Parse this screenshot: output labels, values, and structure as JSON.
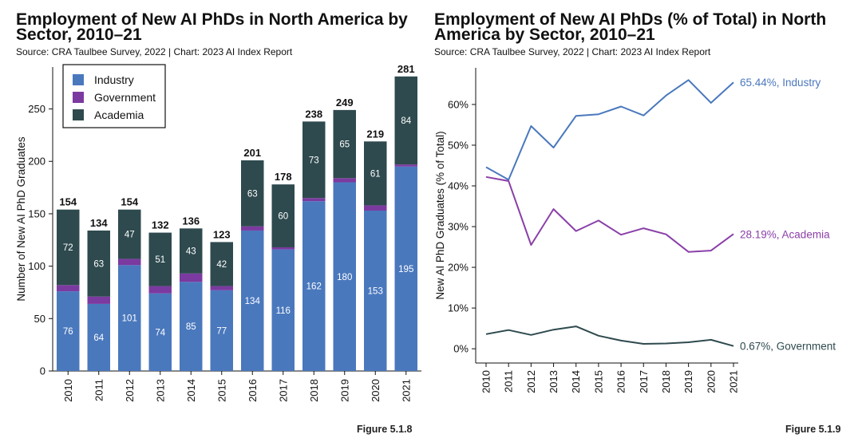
{
  "left": {
    "title_line1": "Employment of New AI PhDs in North America by",
    "title_line2": "Sector, 2010–21",
    "source": "Source: CRA Taulbee Survey, 2022 | Chart: 2023 AI Index Report",
    "figure": "Figure 5.1.8"
  },
  "right": {
    "title_line1": "Employment of New AI PhDs (% of Total) in North",
    "title_line2": "America by Sector, 2010–21",
    "source": "Source: CRA Taulbee Survey, 2022 | Chart: 2023 AI Index Report",
    "figure": "Figure 5.1.9"
  },
  "colors": {
    "industry": "#4a78bd",
    "government": "#7b3aa0",
    "academia": "#2e4a4e",
    "industry_line": "#4a78bd",
    "academia_line": "#8a3fa8",
    "government_line": "#2e4a4e"
  },
  "chart_data": [
    {
      "type": "bar",
      "stacked": true,
      "title": "Employment of New AI PhDs in North America by Sector, 2010–21",
      "ylabel": "Number of New AI PhD Graduates",
      "xlabel": "",
      "ylim": [
        0,
        290
      ],
      "yticks": [
        0,
        50,
        100,
        150,
        200,
        250
      ],
      "categories": [
        "2010",
        "2011",
        "2012",
        "2013",
        "2014",
        "2015",
        "2016",
        "2017",
        "2018",
        "2019",
        "2020",
        "2021"
      ],
      "series": [
        {
          "name": "Industry",
          "values": [
            76,
            64,
            101,
            74,
            85,
            77,
            134,
            116,
            162,
            180,
            153,
            195
          ]
        },
        {
          "name": "Government",
          "values": [
            6,
            7,
            6,
            7,
            8,
            4,
            4,
            2,
            3,
            4,
            5,
            2
          ]
        },
        {
          "name": "Academia",
          "values": [
            72,
            63,
            47,
            51,
            43,
            42,
            63,
            60,
            73,
            65,
            61,
            84
          ]
        }
      ],
      "totals": [
        154,
        134,
        154,
        132,
        136,
        123,
        201,
        178,
        238,
        249,
        219,
        281
      ],
      "legend": "top-left",
      "grid": false
    },
    {
      "type": "line",
      "title": "Employment of New AI PhDs (% of Total) in North America by Sector, 2010–21",
      "ylabel": "New AI PhD Graduates (% of Total)",
      "xlabel": "",
      "ylim": [
        -3.5,
        69
      ],
      "yticks": [
        0,
        10,
        20,
        30,
        40,
        50,
        60
      ],
      "ytick_labels": [
        "0%",
        "10%",
        "20%",
        "30%",
        "40%",
        "50%",
        "60%"
      ],
      "x": [
        "2010",
        "2011",
        "2012",
        "2013",
        "2014",
        "2015",
        "2016",
        "2017",
        "2018",
        "2019",
        "2020",
        "2021"
      ],
      "series": [
        {
          "name": "Industry",
          "values": [
            44.6,
            41.5,
            54.7,
            49.4,
            57.2,
            57.6,
            59.5,
            57.3,
            62.2,
            66.0,
            60.4,
            65.44
          ],
          "end_label": "65.44%, Industry"
        },
        {
          "name": "Academia",
          "values": [
            42.2,
            41.2,
            25.5,
            34.3,
            28.9,
            31.5,
            28.0,
            29.6,
            28.1,
            23.8,
            24.1,
            28.19
          ],
          "end_label": "28.19%, Academia"
        },
        {
          "name": "Government",
          "values": [
            3.6,
            4.6,
            3.4,
            4.7,
            5.5,
            3.2,
            2.0,
            1.2,
            1.3,
            1.6,
            2.2,
            0.67
          ],
          "end_label": "0.67%, Government"
        }
      ],
      "grid": false
    }
  ]
}
